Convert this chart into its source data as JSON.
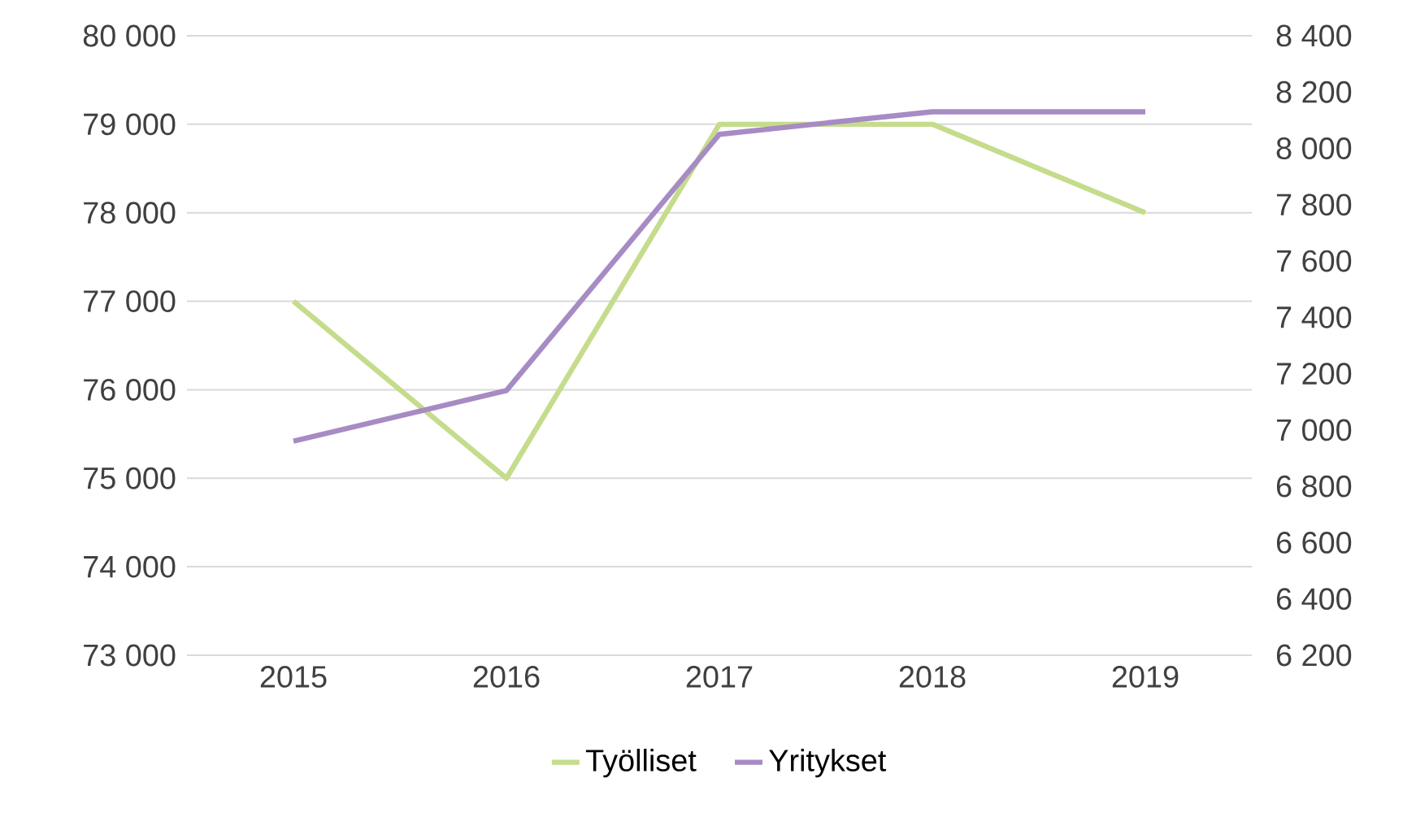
{
  "chart_data": {
    "type": "line",
    "categories": [
      "2015",
      "2016",
      "2017",
      "2018",
      "2019"
    ],
    "series": [
      {
        "name": "Työlliset",
        "color": "#c5dc8c",
        "values": [
          77000,
          75000,
          79000,
          79000,
          78000
        ]
      },
      {
        "name": "Yritykset",
        "color": "#a78bc4",
        "values": [
          6960,
          7140,
          8050,
          8130,
          8130
        ],
        "axis": "y2"
      }
    ],
    "ylim": [
      73000,
      80000
    ],
    "yticks": [
      {
        "value": 73000,
        "label": "73 000"
      },
      {
        "value": 74000,
        "label": "74 000"
      },
      {
        "value": 75000,
        "label": "75 000"
      },
      {
        "value": 76000,
        "label": "76 000"
      },
      {
        "value": 77000,
        "label": "77 000"
      },
      {
        "value": 78000,
        "label": "78 000"
      },
      {
        "value": 79000,
        "label": "79 000"
      },
      {
        "value": 80000,
        "label": "80 000"
      }
    ],
    "y2lim": [
      6200,
      8400
    ],
    "y2ticks": [
      {
        "value": 6200,
        "label": "6 200"
      },
      {
        "value": 6400,
        "label": "6 400"
      },
      {
        "value": 6600,
        "label": "6 600"
      },
      {
        "value": 6800,
        "label": "6 800"
      },
      {
        "value": 7000,
        "label": "7 000"
      },
      {
        "value": 7200,
        "label": "7 200"
      },
      {
        "value": 7400,
        "label": "7 400"
      },
      {
        "value": 7600,
        "label": "7 600"
      },
      {
        "value": 7800,
        "label": "7 800"
      },
      {
        "value": 8000,
        "label": "8 000"
      },
      {
        "value": 8200,
        "label": "8 200"
      },
      {
        "value": 8400,
        "label": "8 400"
      }
    ],
    "grid": "y",
    "legend": "bottom",
    "marker": "none",
    "line_style": "solid"
  }
}
